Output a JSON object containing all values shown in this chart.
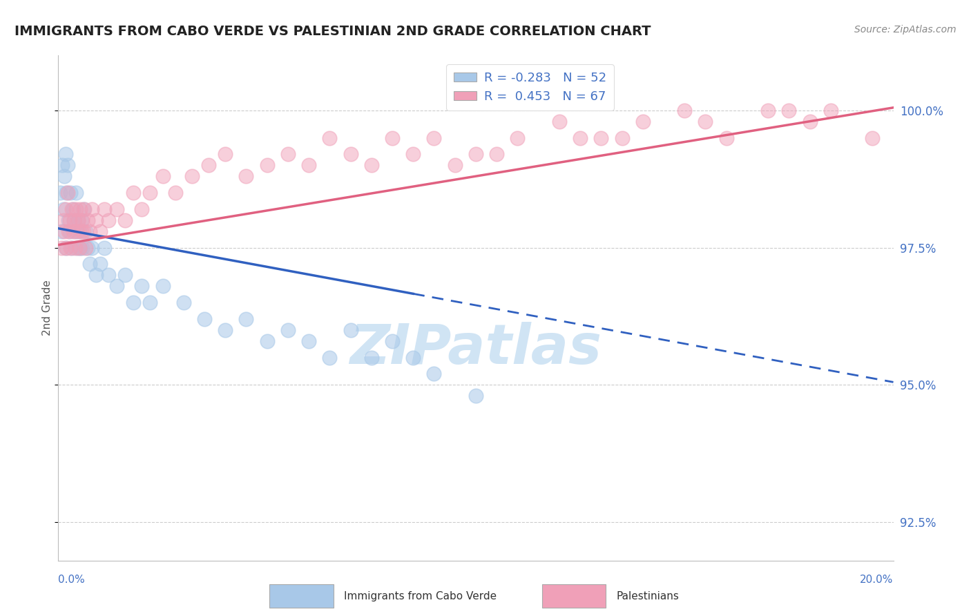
{
  "title": "IMMIGRANTS FROM CABO VERDE VS PALESTINIAN 2ND GRADE CORRELATION CHART",
  "source": "Source: ZipAtlas.com",
  "ylabel": "2nd Grade",
  "yticks": [
    92.5,
    95.0,
    97.5,
    100.0
  ],
  "ytick_labels": [
    "92.5%",
    "95.0%",
    "97.5%",
    "100.0%"
  ],
  "xmin": 0.0,
  "xmax": 20.0,
  "ymin": 91.8,
  "ymax": 101.0,
  "blue_color": "#a8c8e8",
  "pink_color": "#f0a0b8",
  "blue_line_color": "#3060c0",
  "pink_line_color": "#e06080",
  "watermark_color": "#d0e4f4",
  "cabo_verde_x": [
    0.05,
    0.08,
    0.1,
    0.12,
    0.15,
    0.17,
    0.18,
    0.2,
    0.22,
    0.25,
    0.28,
    0.3,
    0.32,
    0.35,
    0.37,
    0.4,
    0.42,
    0.45,
    0.48,
    0.5,
    0.52,
    0.55,
    0.58,
    0.6,
    0.65,
    0.7,
    0.75,
    0.8,
    0.9,
    1.0,
    1.1,
    1.2,
    1.4,
    1.6,
    1.8,
    2.0,
    2.2,
    2.5,
    3.0,
    3.5,
    4.0,
    4.5,
    5.0,
    5.5,
    6.0,
    6.5,
    7.0,
    7.5,
    8.0,
    8.5,
    9.0,
    10.0
  ],
  "cabo_verde_y": [
    98.5,
    97.8,
    99.0,
    98.2,
    98.8,
    99.2,
    97.5,
    98.5,
    99.0,
    98.0,
    97.8,
    98.5,
    97.5,
    98.2,
    98.0,
    97.8,
    98.5,
    97.5,
    98.0,
    97.8,
    97.5,
    98.0,
    97.5,
    98.2,
    97.8,
    97.5,
    97.2,
    97.5,
    97.0,
    97.2,
    97.5,
    97.0,
    96.8,
    97.0,
    96.5,
    96.8,
    96.5,
    96.8,
    96.5,
    96.2,
    96.0,
    96.2,
    95.8,
    96.0,
    95.8,
    95.5,
    96.0,
    95.5,
    95.8,
    95.5,
    95.2,
    94.8
  ],
  "palestinian_x": [
    0.08,
    0.12,
    0.15,
    0.18,
    0.2,
    0.22,
    0.25,
    0.28,
    0.3,
    0.32,
    0.35,
    0.38,
    0.4,
    0.42,
    0.45,
    0.48,
    0.5,
    0.52,
    0.55,
    0.58,
    0.6,
    0.62,
    0.65,
    0.7,
    0.75,
    0.8,
    0.9,
    1.0,
    1.1,
    1.2,
    1.4,
    1.6,
    1.8,
    2.0,
    2.2,
    2.5,
    2.8,
    3.2,
    3.6,
    4.0,
    4.5,
    5.0,
    5.5,
    6.0,
    6.5,
    7.0,
    7.5,
    8.0,
    8.5,
    9.0,
    10.0,
    11.0,
    12.0,
    13.0,
    14.0,
    15.0,
    16.0,
    17.0,
    18.0,
    18.5,
    12.5,
    10.5,
    9.5,
    13.5,
    15.5,
    17.5,
    19.5
  ],
  "palestinian_y": [
    97.5,
    98.0,
    97.8,
    98.2,
    97.5,
    98.5,
    97.8,
    98.0,
    97.5,
    98.2,
    97.8,
    98.0,
    97.5,
    98.2,
    97.8,
    98.0,
    97.5,
    98.2,
    97.8,
    98.0,
    97.8,
    98.2,
    97.5,
    98.0,
    97.8,
    98.2,
    98.0,
    97.8,
    98.2,
    98.0,
    98.2,
    98.0,
    98.5,
    98.2,
    98.5,
    98.8,
    98.5,
    98.8,
    99.0,
    99.2,
    98.8,
    99.0,
    99.2,
    99.0,
    99.5,
    99.2,
    99.0,
    99.5,
    99.2,
    99.5,
    99.2,
    99.5,
    99.8,
    99.5,
    99.8,
    100.0,
    99.5,
    100.0,
    99.8,
    100.0,
    99.5,
    99.2,
    99.0,
    99.5,
    99.8,
    100.0,
    99.5
  ],
  "legend_label_blue": "R = -0.283   N = 52",
  "legend_label_pink": "R =  0.453   N = 67",
  "bottom_label_blue": "Immigrants from Cabo Verde",
  "bottom_label_pink": "Palestinians"
}
